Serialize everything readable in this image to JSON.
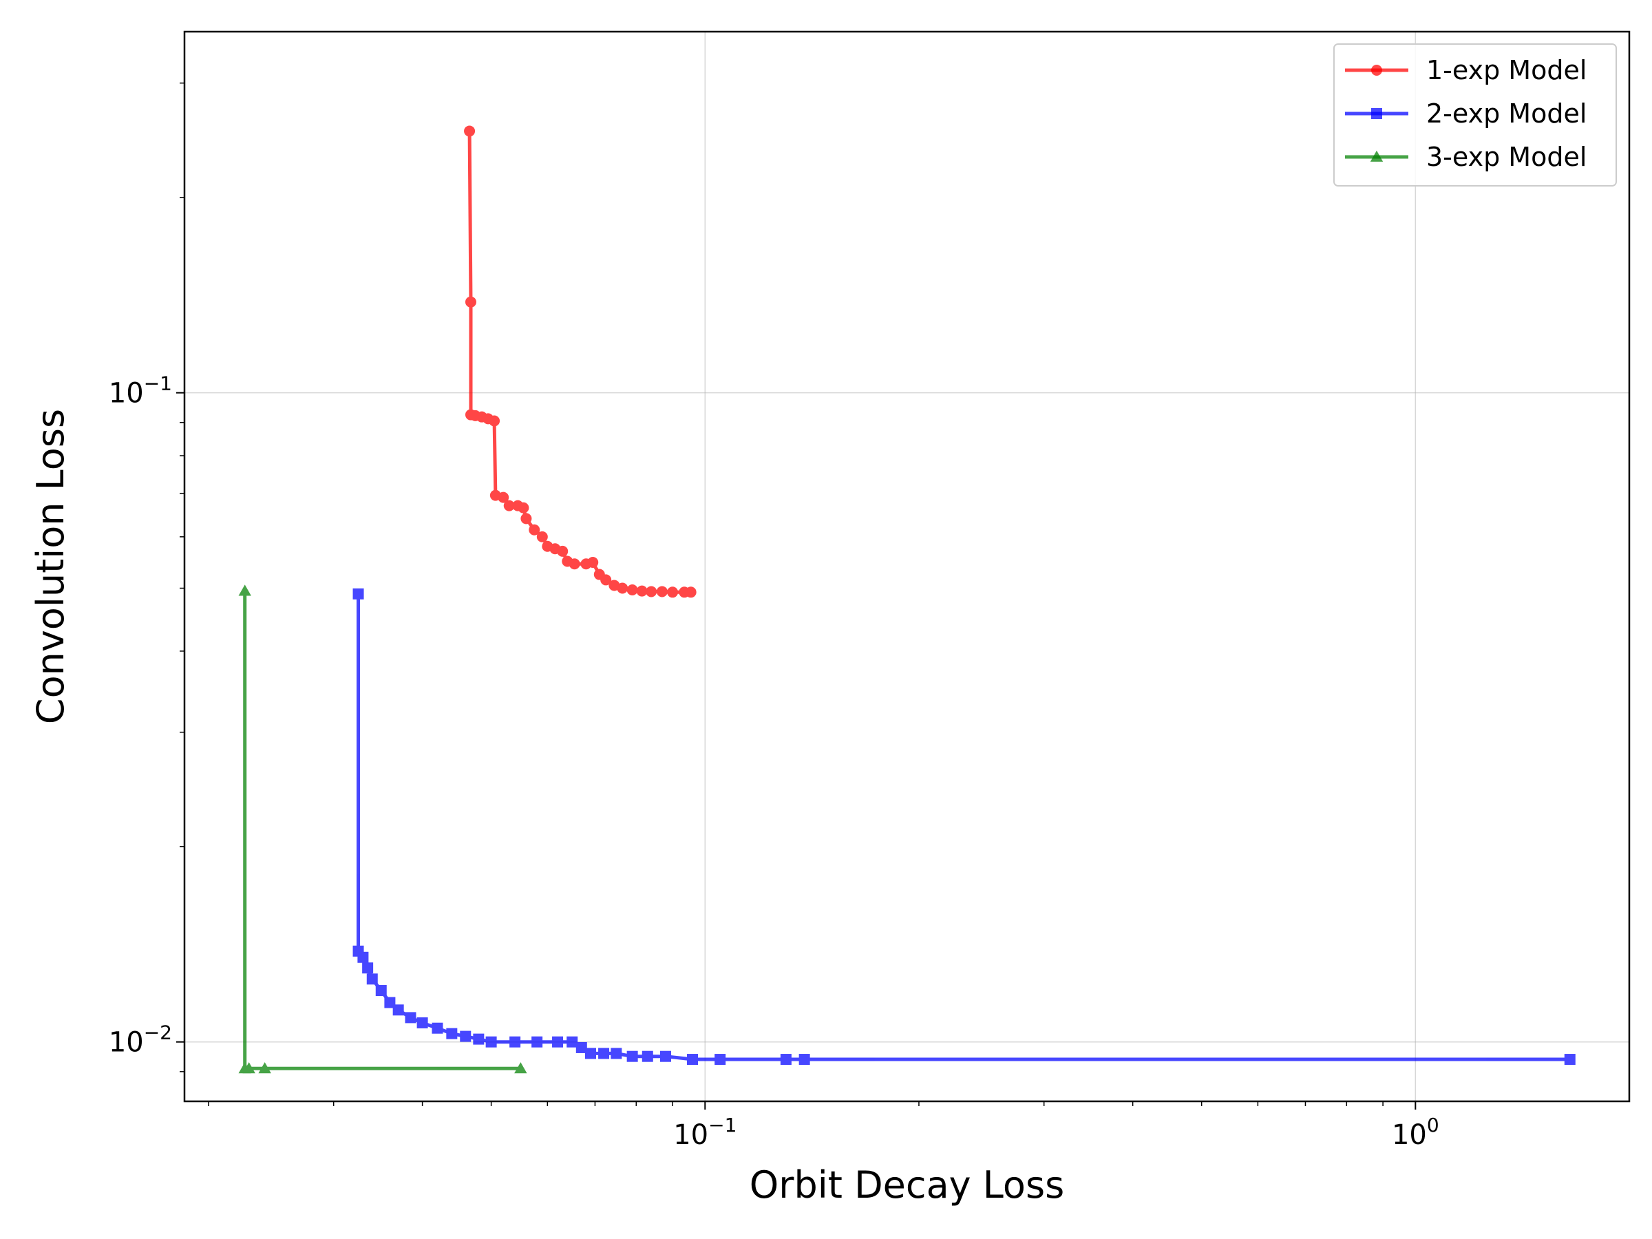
{
  "chart_data": {
    "type": "line",
    "xlabel": "Orbit Decay Loss",
    "ylabel": "Convolution Loss",
    "xscale": "log",
    "yscale": "log",
    "xlim": [
      0.0185,
      2.0
    ],
    "ylim": [
      0.0081,
      0.36
    ],
    "grid": true,
    "legend": "top-right",
    "x_ticks": [
      {
        "base": "10",
        "exp": "−1",
        "value": 0.1
      },
      {
        "base": "10",
        "exp": "0",
        "value": 1.0
      }
    ],
    "y_ticks": [
      {
        "base": "10",
        "exp": "−1",
        "value": 0.1
      },
      {
        "base": "10",
        "exp": "−2",
        "value": 0.01
      }
    ],
    "series": [
      {
        "name": "1-exp Model",
        "color": "#ff0000",
        "marker": "circle",
        "points": [
          [
            0.0466,
            0.253
          ],
          [
            0.0468,
            0.138
          ],
          [
            0.0468,
            0.0925
          ],
          [
            0.0475,
            0.0922
          ],
          [
            0.0485,
            0.0918
          ],
          [
            0.0495,
            0.0912
          ],
          [
            0.0505,
            0.0905
          ],
          [
            0.0507,
            0.0695
          ],
          [
            0.052,
            0.069
          ],
          [
            0.053,
            0.067
          ],
          [
            0.0545,
            0.067
          ],
          [
            0.0555,
            0.0665
          ],
          [
            0.056,
            0.064
          ],
          [
            0.0575,
            0.0615
          ],
          [
            0.059,
            0.06
          ],
          [
            0.06,
            0.058
          ],
          [
            0.0615,
            0.0575
          ],
          [
            0.063,
            0.057
          ],
          [
            0.064,
            0.055
          ],
          [
            0.0655,
            0.0545
          ],
          [
            0.068,
            0.0545
          ],
          [
            0.0695,
            0.0548
          ],
          [
            0.071,
            0.0525
          ],
          [
            0.0725,
            0.0515
          ],
          [
            0.0745,
            0.0505
          ],
          [
            0.0765,
            0.05
          ],
          [
            0.079,
            0.0497
          ],
          [
            0.0815,
            0.0495
          ],
          [
            0.084,
            0.0494
          ],
          [
            0.087,
            0.0494
          ],
          [
            0.09,
            0.0493
          ],
          [
            0.0935,
            0.0493
          ],
          [
            0.0955,
            0.0493
          ]
        ]
      },
      {
        "name": "2-exp Model",
        "color": "#0000ff",
        "marker": "square",
        "points": [
          [
            0.0325,
            0.049
          ],
          [
            0.0325,
            0.0138
          ],
          [
            0.033,
            0.0135
          ],
          [
            0.0335,
            0.013
          ],
          [
            0.034,
            0.0125
          ],
          [
            0.035,
            0.012
          ],
          [
            0.036,
            0.0115
          ],
          [
            0.037,
            0.0112
          ],
          [
            0.0385,
            0.0109
          ],
          [
            0.04,
            0.0107
          ],
          [
            0.042,
            0.0105
          ],
          [
            0.044,
            0.0103
          ],
          [
            0.046,
            0.0102
          ],
          [
            0.048,
            0.0101
          ],
          [
            0.05,
            0.01
          ],
          [
            0.054,
            0.01
          ],
          [
            0.058,
            0.01
          ],
          [
            0.062,
            0.01
          ],
          [
            0.065,
            0.01
          ],
          [
            0.067,
            0.0098
          ],
          [
            0.069,
            0.0096
          ],
          [
            0.072,
            0.0096
          ],
          [
            0.075,
            0.0096
          ],
          [
            0.079,
            0.0095
          ],
          [
            0.083,
            0.0095
          ],
          [
            0.088,
            0.0095
          ],
          [
            0.096,
            0.0094
          ],
          [
            0.105,
            0.0094
          ],
          [
            0.13,
            0.0094
          ],
          [
            0.138,
            0.0094
          ],
          [
            1.65,
            0.0094
          ]
        ]
      },
      {
        "name": "3-exp Model",
        "color": "#008000",
        "marker": "triangle",
        "points": [
          [
            0.0225,
            0.0495
          ],
          [
            0.0225,
            0.0091
          ],
          [
            0.0228,
            0.0091
          ],
          [
            0.024,
            0.0091
          ],
          [
            0.055,
            0.0091
          ]
        ]
      }
    ]
  }
}
